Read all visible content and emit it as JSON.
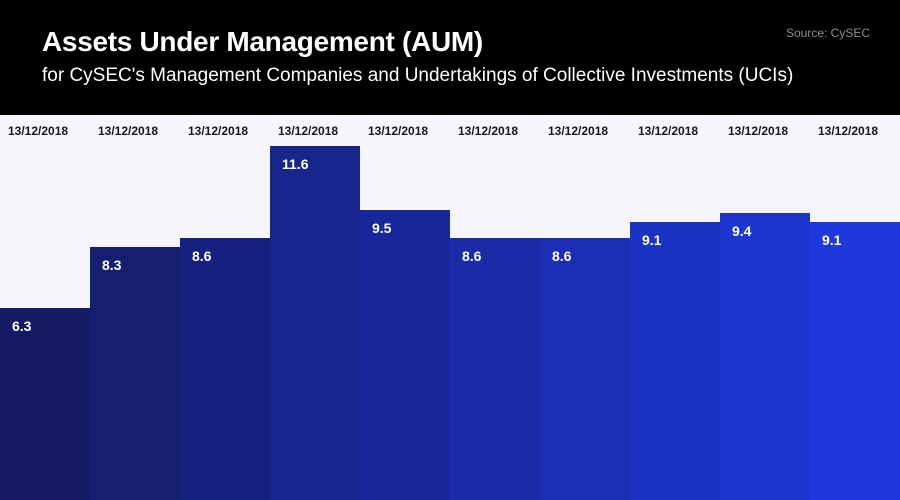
{
  "header": {
    "title": "Assets Under Management (AUM)",
    "subtitle": "for CySEC's Management Companies and Undertakings of Collective Investments (UCIs)",
    "source": "Source: CySEC"
  },
  "chart_data": {
    "type": "bar",
    "title": "Assets Under Management (AUM)",
    "subtitle": "for CySEC's Management Companies and Undertakings of Collective Investments (UCIs)",
    "source": "Source: CySEC",
    "categories": [
      "13/12/2018",
      "13/12/2018",
      "13/12/2018",
      "13/12/2018",
      "13/12/2018",
      "13/12/2018",
      "13/12/2018",
      "13/12/2018",
      "13/12/2018",
      "13/12/2018"
    ],
    "values": [
      6.3,
      8.3,
      8.6,
      11.6,
      9.5,
      8.6,
      8.6,
      9.1,
      9.4,
      9.1
    ],
    "value_labels": [
      "6.3",
      "8.3",
      "8.6",
      "11.6",
      "9.5",
      "8.6",
      "8.6",
      "9.1",
      "9.4",
      "9.1"
    ],
    "ylim": [
      0,
      11.6
    ],
    "grid": false,
    "legend_position": "none",
    "colors": {
      "bar_gradient_start": "#141b64",
      "bar_gradient_end": "#1e38dd",
      "chart_background": "#f5f5fb",
      "header_background": "#000000",
      "header_text": "#ffffff",
      "source_text": "#8e8e90",
      "date_label_text": "#17171c",
      "value_label_text": "#ffffff"
    }
  }
}
